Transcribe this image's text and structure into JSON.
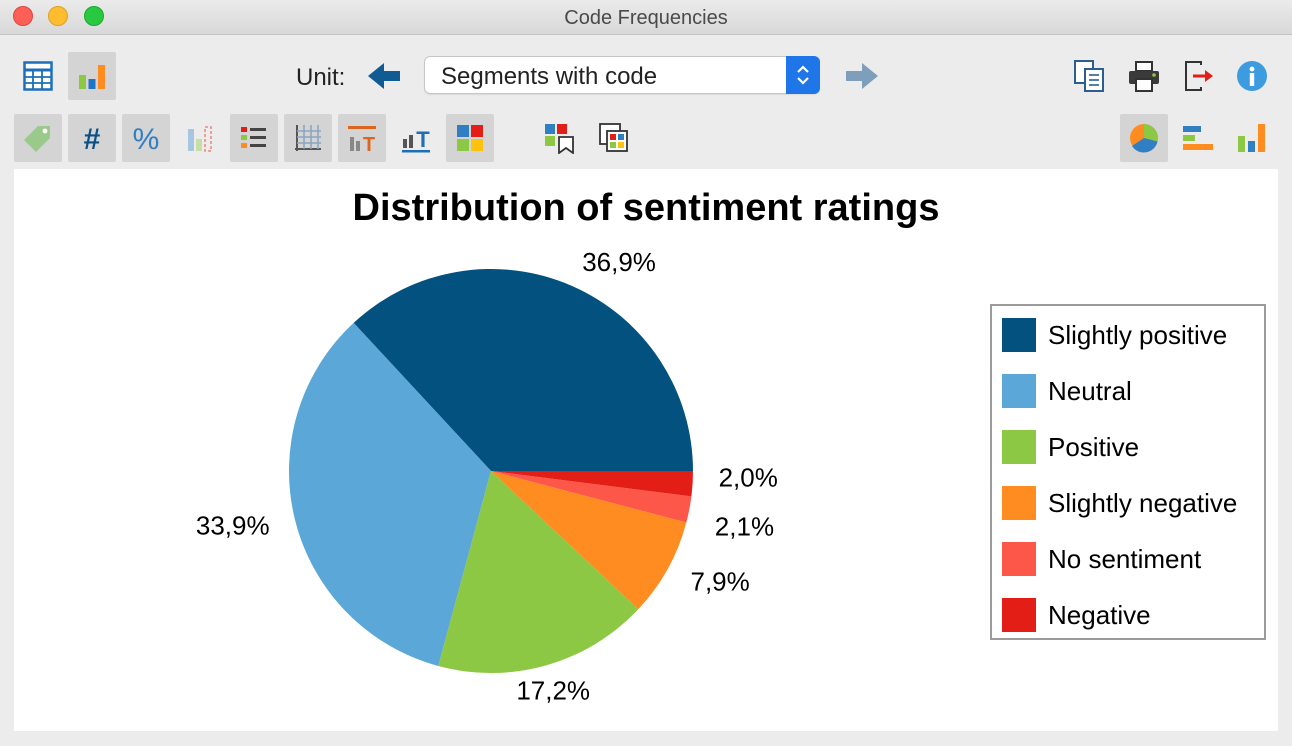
{
  "window": {
    "title": "Code Frequencies"
  },
  "toolbar": {
    "unit_label": "Unit:",
    "unit_select_value": "Segments with code"
  },
  "chart_data": {
    "type": "pie",
    "title": "Distribution of sentiment ratings",
    "legend_position": "right",
    "slices": [
      {
        "label": "Slightly positive",
        "value": 36.9,
        "display": "36,9%",
        "color": "#03517f"
      },
      {
        "label": "Neutral",
        "value": 33.9,
        "display": "33,9%",
        "color": "#5ba7d8"
      },
      {
        "label": "Positive",
        "value": 17.2,
        "display": "17,2%",
        "color": "#8cc843"
      },
      {
        "label": "Slightly negative",
        "value": 7.9,
        "display": "7,9%",
        "color": "#fe8c20"
      },
      {
        "label": "No sentiment",
        "value": 2.1,
        "display": "2,1%",
        "color": "#fd5749"
      },
      {
        "label": "Negative",
        "value": 2.0,
        "display": "2,0%",
        "color": "#e21e17"
      }
    ]
  }
}
